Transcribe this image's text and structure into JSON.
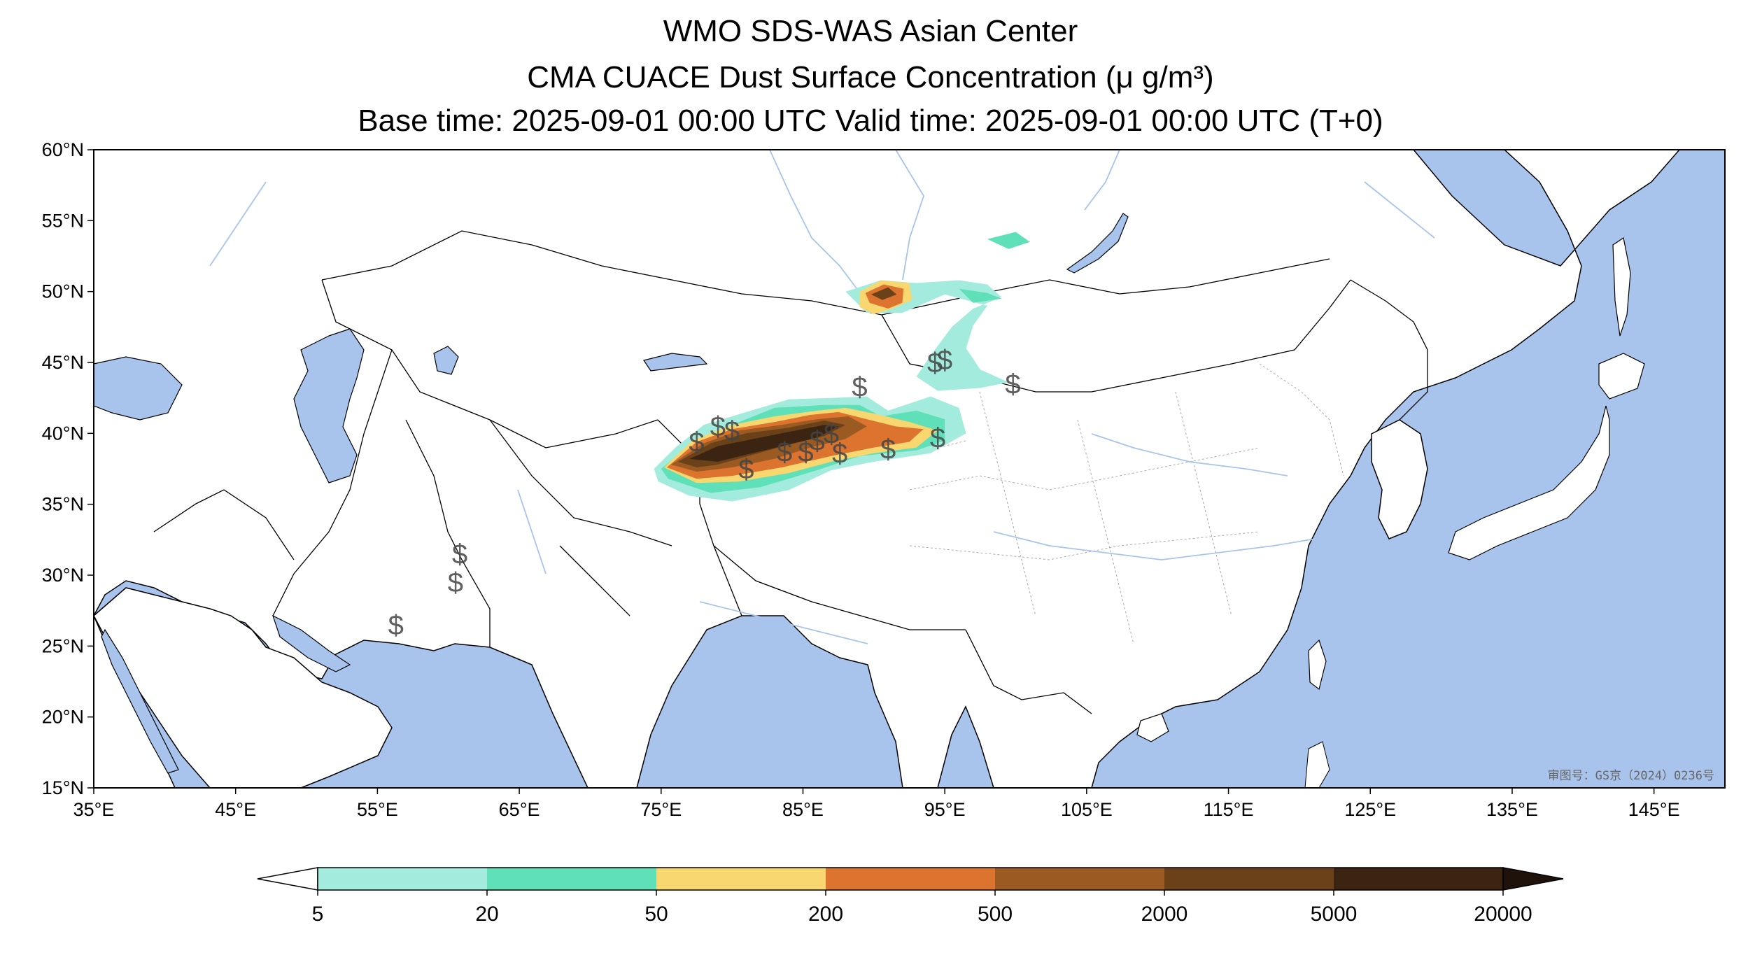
{
  "titles": {
    "line1": "WMO SDS-WAS Asian Center",
    "line2": "CMA CUACE Dust Surface Concentration (μ g/m³)",
    "line3": "Base time: 2025-09-01 00:00 UTC Valid time: 2025-09-01 00:00 UTC (T+0)"
  },
  "map": {
    "lon_range": [
      35,
      150
    ],
    "lat_range": [
      15,
      60
    ],
    "x_ticks": [
      "35°E",
      "45°E",
      "55°E",
      "65°E",
      "75°E",
      "85°E",
      "95°E",
      "105°E",
      "115°E",
      "125°E",
      "135°E",
      "145°E"
    ],
    "y_ticks": [
      "60°N",
      "55°N",
      "50°N",
      "45°N",
      "40°N",
      "35°N",
      "30°N",
      "25°N",
      "20°N",
      "15°N"
    ],
    "approval_number": "审图号：GS京（2024）0236号",
    "colors": {
      "ocean": "#a8c4ec",
      "land": "#ffffff",
      "border": "#000000",
      "river": "#a8c4ec"
    }
  },
  "colorbar": {
    "labels": [
      "5",
      "20",
      "50",
      "200",
      "500",
      "2000",
      "5000",
      "20000"
    ],
    "colors": [
      "#a3ecdd",
      "#5fe0b8",
      "#f8d770",
      "#dc7430",
      "#9a5a22",
      "#6a4118",
      "#3b2412"
    ],
    "extend": "both",
    "over_color": "#1f120a",
    "under_color": "#ffffff"
  },
  "markers": {
    "symbol": "$"
  }
}
